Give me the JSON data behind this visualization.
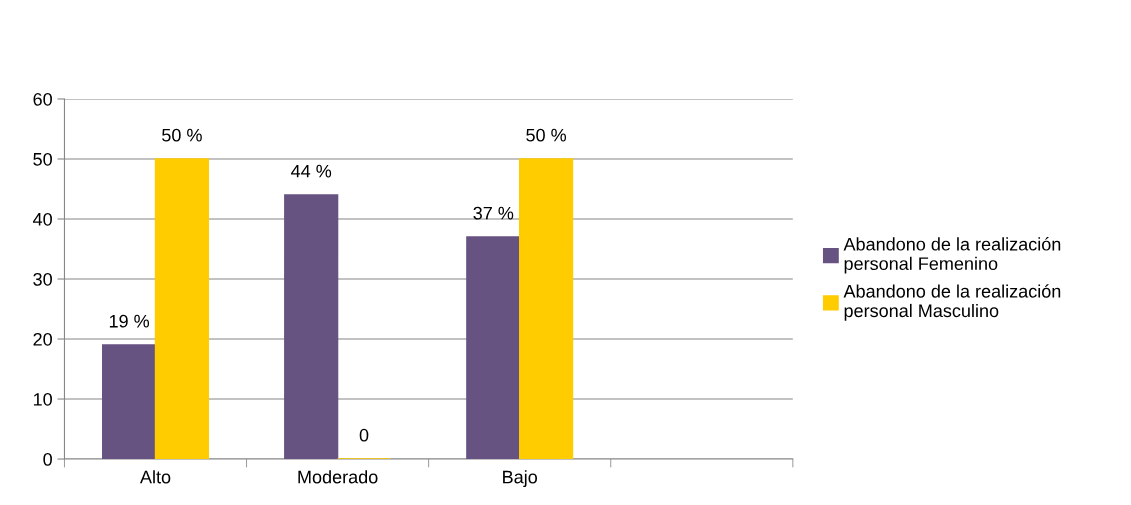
{
  "chart_data": {
    "type": "bar",
    "categories": [
      "Alto",
      "Moderado",
      "Bajo",
      null
    ],
    "series": [
      {
        "name": "Abandono de la realización personal Femenino",
        "color": "#675382",
        "values": [
          19,
          44,
          37,
          null
        ],
        "value_labels": [
          "19 %",
          "44 %",
          "37 %",
          null
        ]
      },
      {
        "name": "Abandono de la realización personal Masculino",
        "color": "#ffcc00",
        "values": [
          50,
          0,
          50,
          null
        ],
        "value_labels": [
          "50 %",
          "0",
          "50 %",
          null
        ]
      }
    ],
    "ylim": [
      0,
      60
    ],
    "yticks": [
      0,
      10,
      20,
      30,
      40,
      50,
      60
    ],
    "grid": "y",
    "legend": "right"
  }
}
